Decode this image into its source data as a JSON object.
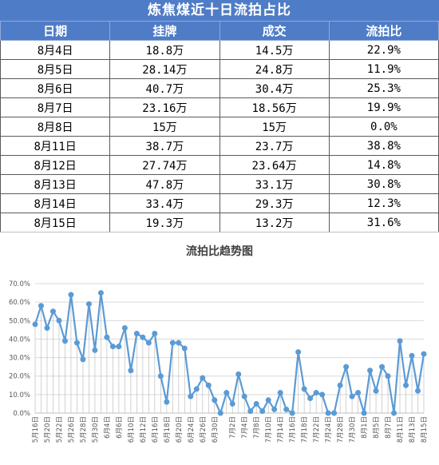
{
  "title": "炼焦煤近十日流拍占比",
  "table": {
    "headers": [
      "日期",
      "挂牌",
      "成交",
      "流拍比"
    ],
    "rows": [
      [
        "8月4日",
        "18.8万",
        "14.5万",
        "22.9%"
      ],
      [
        "8月5日",
        "28.14万",
        "24.8万",
        "11.9%"
      ],
      [
        "8月6日",
        "40.7万",
        "30.4万",
        "25.3%"
      ],
      [
        "8月7日",
        "23.16万",
        "18.56万",
        "19.9%"
      ],
      [
        "8月8日",
        "15万",
        "15万",
        "0.0%"
      ],
      [
        "8月11日",
        "38.7万",
        "23.7万",
        "38.8%"
      ],
      [
        "8月12日",
        "27.74万",
        "23.64万",
        "14.8%"
      ],
      [
        "8月13日",
        "47.8万",
        "33.1万",
        "30.8%"
      ],
      [
        "8月14日",
        "33.4万",
        "29.3万",
        "12.3%"
      ],
      [
        "8月15日",
        "19.3万",
        "13.2万",
        "31.6%"
      ]
    ]
  },
  "chart_data": {
    "type": "line",
    "title": "流拍比趋势图",
    "ylim": [
      0,
      70
    ],
    "yticks": [
      "0.0%",
      "10.0%",
      "20.0%",
      "30.0%",
      "40.0%",
      "50.0%",
      "60.0%",
      "70.0%"
    ],
    "xtick_labels": [
      "5月16日",
      "5月20日",
      "5月22日",
      "5月26日",
      "5月28日",
      "5月30日",
      "6月4日",
      "6月6日",
      "6月10日",
      "6月12日",
      "6月16日",
      "6月18日",
      "6月20日",
      "6月24日",
      "6月26日",
      "6月30日",
      "7月2日",
      "7月4日",
      "7月8日",
      "7月10日",
      "7月14日",
      "7月16日",
      "7月18日",
      "7月22日",
      "7月24日",
      "7月28日",
      "7月30日",
      "8月1日",
      "8月5日",
      "8月7日",
      "8月11日",
      "8月13日",
      "8月15日"
    ],
    "grid": true,
    "color": "#5b9bd5",
    "values": [
      48,
      58,
      46,
      55,
      50,
      39,
      64,
      38,
      29,
      59,
      34,
      65,
      41,
      36,
      36,
      46,
      23,
      43,
      41,
      38,
      43,
      20,
      6,
      38,
      38,
      35,
      9,
      13,
      19,
      15,
      7,
      0,
      11,
      5,
      21,
      9,
      1,
      5,
      1,
      7,
      2,
      11,
      2,
      0,
      33,
      13,
      8,
      11,
      10,
      0,
      0,
      15,
      25,
      9,
      11,
      0,
      23,
      12,
      25,
      20,
      0,
      39,
      15,
      31,
      12,
      32
    ]
  }
}
